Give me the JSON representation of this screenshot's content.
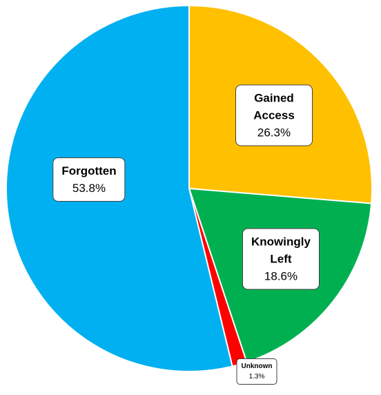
{
  "chart_data": {
    "type": "pie",
    "categories": [
      "Gained Access",
      "Knowingly Left",
      "Unknown",
      "Forgotten"
    ],
    "values": [
      26.3,
      18.6,
      1.3,
      53.8
    ],
    "value_labels": [
      "26.3%",
      "18.6%",
      "1.3%",
      "53.8%"
    ],
    "colors": [
      "#FFC000",
      "#00B050",
      "#FF0000",
      "#00B0F0"
    ]
  }
}
